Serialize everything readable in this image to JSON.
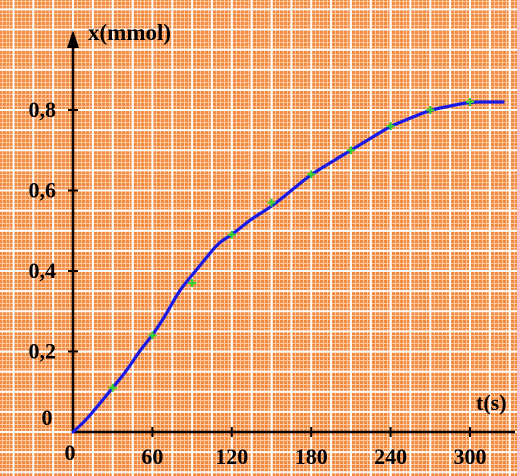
{
  "chart_data": {
    "type": "line",
    "xlabel": "t(s)",
    "ylabel": "x(mmol)",
    "origin_label": "0",
    "xlim": [
      0,
      325
    ],
    "ylim": [
      0,
      0.9
    ],
    "x_ticks": [
      {
        "value": 60,
        "label": "60"
      },
      {
        "value": 120,
        "label": "120"
      },
      {
        "value": 180,
        "label": "180"
      },
      {
        "value": 240,
        "label": "240"
      },
      {
        "value": 300,
        "label": "300"
      }
    ],
    "y_ticks": [
      {
        "value": 0.2,
        "label": "0,2"
      },
      {
        "value": 0.4,
        "label": "0,4"
      },
      {
        "value": 0.6,
        "label": "0,6"
      },
      {
        "value": 0.8,
        "label": "0,8"
      }
    ],
    "grid": true,
    "series": [
      {
        "color": "#1A1AE6",
        "x": [
          0,
          10,
          20,
          30,
          40,
          50,
          60,
          70,
          80,
          90,
          100,
          110,
          120,
          135,
          150,
          165,
          180,
          195,
          210,
          225,
          240,
          255,
          270,
          285,
          300,
          315,
          325
        ],
        "y": [
          0,
          0.03,
          0.07,
          0.11,
          0.15,
          0.2,
          0.24,
          0.29,
          0.35,
          0.39,
          0.43,
          0.47,
          0.49,
          0.53,
          0.56,
          0.6,
          0.64,
          0.67,
          0.7,
          0.73,
          0.76,
          0.78,
          0.8,
          0.81,
          0.82,
          0.82,
          0.82
        ]
      }
    ],
    "markers": {
      "color": "#35D235",
      "x": [
        30,
        60,
        90,
        120,
        150,
        180,
        210,
        240,
        270,
        300
      ],
      "y": [
        0.11,
        0.24,
        0.37,
        0.49,
        0.57,
        0.64,
        0.7,
        0.76,
        0.8,
        0.82
      ]
    },
    "colors": {
      "paper": "#F58A3E",
      "grid_fine": "#FCC9A2",
      "grid_major": "#FFFFFF",
      "axis": "#000000"
    }
  }
}
